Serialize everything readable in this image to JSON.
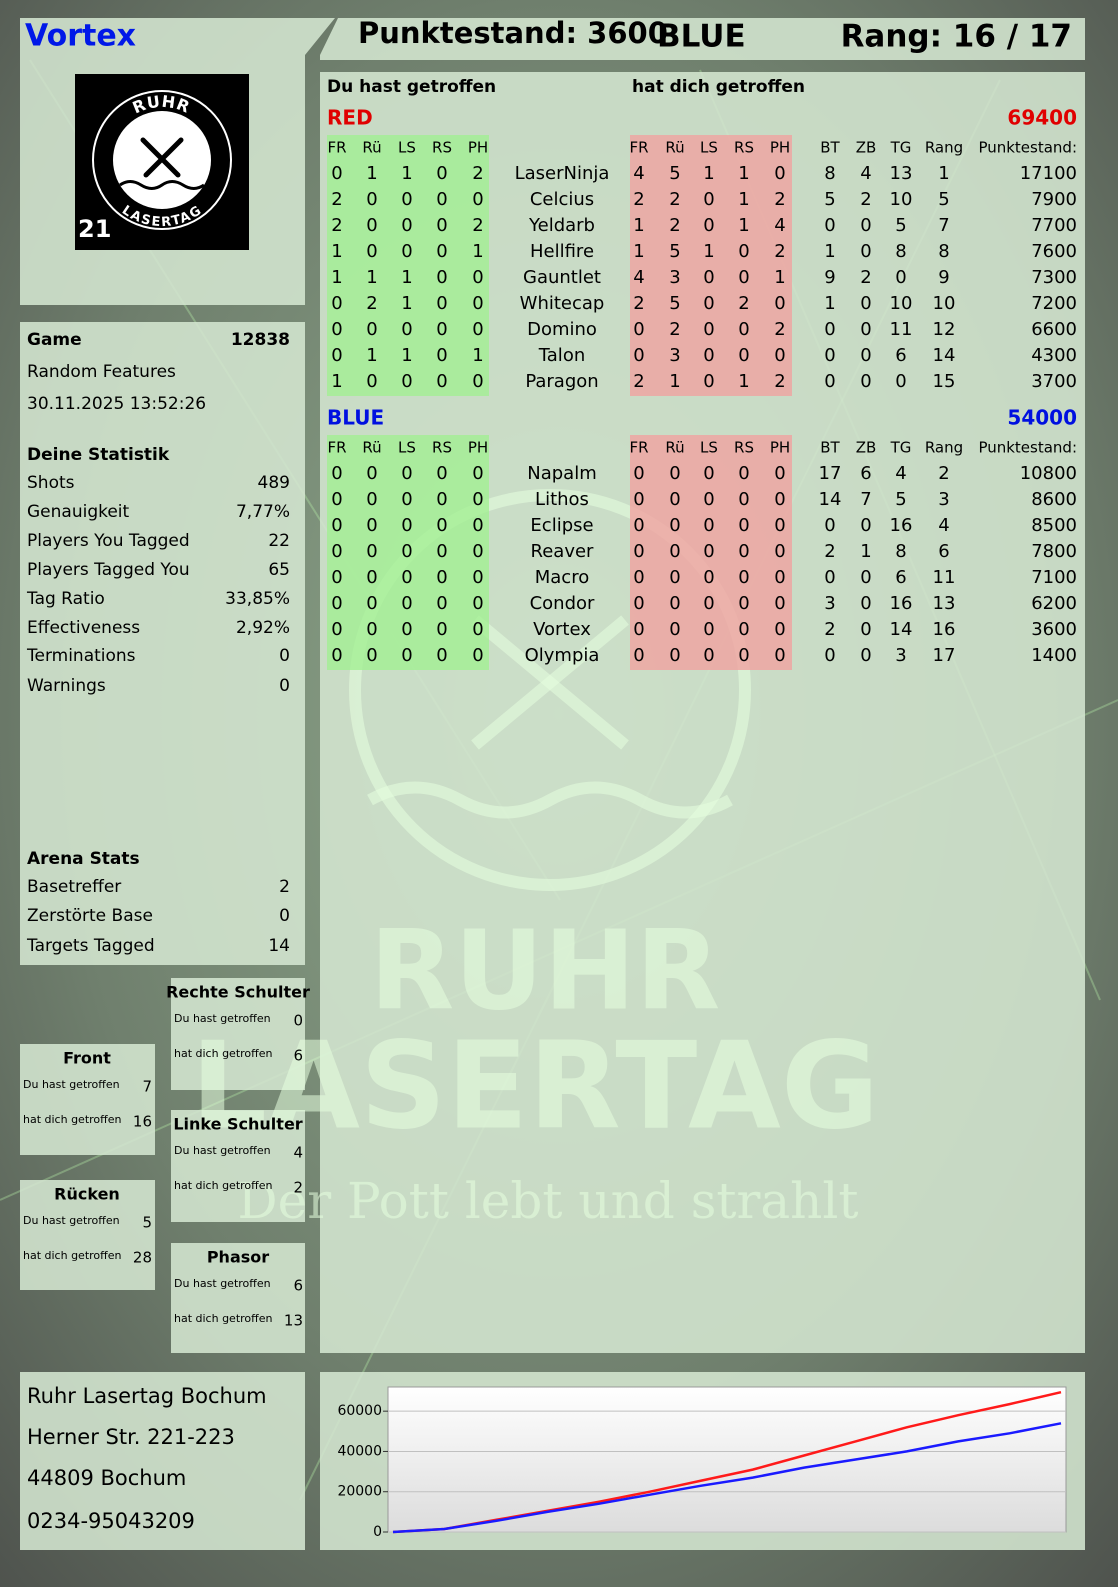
{
  "header": {
    "player": "Vortex",
    "score": "Punktestand: 3600",
    "team": "BLUE",
    "rank": "Rang: 16 / 17"
  },
  "logo": {
    "top": "RUHR",
    "bottom": "LASERTAG",
    "number": "21"
  },
  "game": {
    "label": "Game",
    "id": 12838,
    "mode": "Random Features",
    "date": "30.11.2025 13:52:26"
  },
  "stats": {
    "title": "Deine Statistik",
    "rows": [
      [
        "Shots",
        489
      ],
      [
        "Genauigkeit",
        "7,77%"
      ],
      [
        "Players You Tagged",
        22
      ],
      [
        "Players Tagged You",
        65
      ],
      [
        "Tag Ratio",
        "33,85%"
      ],
      [
        "Effectiveness",
        "2,92%"
      ],
      [
        "Terminations",
        0
      ],
      [
        "Warnings",
        0
      ]
    ]
  },
  "arena": {
    "title": "Arena Stats",
    "rows": [
      [
        "Basetreffer",
        2
      ],
      [
        "Zerstörte Base",
        0
      ],
      [
        "Targets Tagged",
        14
      ]
    ]
  },
  "zones": [
    {
      "title": "Rechte Schulter",
      "rows": [
        [
          "Du hast getroffen",
          0
        ],
        [
          "hat dich getroffen",
          6
        ]
      ]
    },
    {
      "title": "Front",
      "rows": [
        [
          "Du hast getroffen",
          7
        ],
        [
          "hat dich getroffen",
          16
        ]
      ]
    },
    {
      "title": "Linke Schulter",
      "rows": [
        [
          "Du hast getroffen",
          4
        ],
        [
          "hat dich getroffen",
          2
        ]
      ]
    },
    {
      "title": "Rücken",
      "rows": [
        [
          "Du hast getroffen",
          5
        ],
        [
          "hat dich getroffen",
          28
        ]
      ]
    },
    {
      "title": "Phasor",
      "rows": [
        [
          "Du hast getroffen",
          6
        ],
        [
          "hat dich getroffen",
          13
        ]
      ]
    }
  ],
  "address": [
    "Ruhr Lasertag Bochum",
    "Herner Str. 221-223",
    "44809 Bochum",
    "0234-95043209"
  ],
  "watermark": {
    "line1": "RUHR",
    "line2": "LASERTAG",
    "slogan": "Der Pott lebt und strahlt"
  },
  "table": {
    "hit_by_you": "Du hast getroffen",
    "hit_you": "hat dich getroffen",
    "columns_left": [
      "FR",
      "Rü",
      "LS",
      "RS",
      "PH"
    ],
    "columns_right": [
      "FR",
      "Rü",
      "LS",
      "RS",
      "PH"
    ],
    "columns_stats": [
      "BT",
      "ZB",
      "TG",
      "Rang",
      "Punktestand:"
    ],
    "teams": [
      {
        "name": "RED",
        "score": 69400,
        "color": "#e00000",
        "rows": [
          {
            "name": "LaserNinja",
            "you_hit": [
              0,
              1,
              1,
              0,
              2
            ],
            "hit_you": [
              4,
              5,
              1,
              1,
              0
            ],
            "stats": [
              8,
              4,
              13,
              1,
              17100
            ]
          },
          {
            "name": "Celcius",
            "you_hit": [
              2,
              0,
              0,
              0,
              0
            ],
            "hit_you": [
              2,
              2,
              0,
              1,
              2
            ],
            "stats": [
              5,
              2,
              10,
              5,
              7900
            ]
          },
          {
            "name": "Yeldarb",
            "you_hit": [
              2,
              0,
              0,
              0,
              2
            ],
            "hit_you": [
              1,
              2,
              0,
              1,
              4
            ],
            "stats": [
              0,
              0,
              5,
              7,
              7700
            ]
          },
          {
            "name": "Hellfire",
            "you_hit": [
              1,
              0,
              0,
              0,
              1
            ],
            "hit_you": [
              1,
              5,
              1,
              0,
              2
            ],
            "stats": [
              1,
              0,
              8,
              8,
              7600
            ]
          },
          {
            "name": "Gauntlet",
            "you_hit": [
              1,
              1,
              1,
              0,
              0
            ],
            "hit_you": [
              4,
              3,
              0,
              0,
              1
            ],
            "stats": [
              9,
              2,
              0,
              9,
              7300
            ]
          },
          {
            "name": "Whitecap",
            "you_hit": [
              0,
              2,
              1,
              0,
              0
            ],
            "hit_you": [
              2,
              5,
              0,
              2,
              0
            ],
            "stats": [
              1,
              0,
              10,
              10,
              7200
            ]
          },
          {
            "name": "Domino",
            "you_hit": [
              0,
              0,
              0,
              0,
              0
            ],
            "hit_you": [
              0,
              2,
              0,
              0,
              2
            ],
            "stats": [
              0,
              0,
              11,
              12,
              6600
            ]
          },
          {
            "name": "Talon",
            "you_hit": [
              0,
              1,
              1,
              0,
              1
            ],
            "hit_you": [
              0,
              3,
              0,
              0,
              0
            ],
            "stats": [
              0,
              0,
              6,
              14,
              4300
            ]
          },
          {
            "name": "Paragon",
            "you_hit": [
              1,
              0,
              0,
              0,
              0
            ],
            "hit_you": [
              2,
              1,
              0,
              1,
              2
            ],
            "stats": [
              0,
              0,
              0,
              15,
              3700
            ]
          }
        ]
      },
      {
        "name": "BLUE",
        "score": 54000,
        "color": "#0010e0",
        "rows": [
          {
            "name": "Napalm",
            "you_hit": [
              0,
              0,
              0,
              0,
              0
            ],
            "hit_you": [
              0,
              0,
              0,
              0,
              0
            ],
            "stats": [
              17,
              6,
              4,
              2,
              10800
            ]
          },
          {
            "name": "Lithos",
            "you_hit": [
              0,
              0,
              0,
              0,
              0
            ],
            "hit_you": [
              0,
              0,
              0,
              0,
              0
            ],
            "stats": [
              14,
              7,
              5,
              3,
              8600
            ]
          },
          {
            "name": "Eclipse",
            "you_hit": [
              0,
              0,
              0,
              0,
              0
            ],
            "hit_you": [
              0,
              0,
              0,
              0,
              0
            ],
            "stats": [
              0,
              0,
              16,
              4,
              8500
            ]
          },
          {
            "name": "Reaver",
            "you_hit": [
              0,
              0,
              0,
              0,
              0
            ],
            "hit_you": [
              0,
              0,
              0,
              0,
              0
            ],
            "stats": [
              2,
              1,
              8,
              6,
              7800
            ]
          },
          {
            "name": "Macro",
            "you_hit": [
              0,
              0,
              0,
              0,
              0
            ],
            "hit_you": [
              0,
              0,
              0,
              0,
              0
            ],
            "stats": [
              0,
              0,
              6,
              11,
              7100
            ]
          },
          {
            "name": "Condor",
            "you_hit": [
              0,
              0,
              0,
              0,
              0
            ],
            "hit_you": [
              0,
              0,
              0,
              0,
              0
            ],
            "stats": [
              3,
              0,
              16,
              13,
              6200
            ]
          },
          {
            "name": "Vortex",
            "you_hit": [
              0,
              0,
              0,
              0,
              0
            ],
            "hit_you": [
              0,
              0,
              0,
              0,
              0
            ],
            "stats": [
              2,
              0,
              14,
              16,
              3600
            ]
          },
          {
            "name": "Olympia",
            "you_hit": [
              0,
              0,
              0,
              0,
              0
            ],
            "hit_you": [
              0,
              0,
              0,
              0,
              0
            ],
            "stats": [
              0,
              0,
              3,
              17,
              1400
            ]
          }
        ]
      }
    ]
  },
  "chart_data": {
    "type": "line",
    "x": [
      0,
      1,
      2,
      3,
      4,
      5,
      6,
      7,
      8,
      9,
      10,
      11,
      12,
      13
    ],
    "xlim": [
      0,
      13
    ],
    "ylim": [
      0,
      72000
    ],
    "yticks": [
      0,
      20000,
      40000,
      60000
    ],
    "grid": true,
    "series": [
      {
        "name": "RED",
        "color": "#ff1a1a",
        "values": [
          0,
          1500,
          6000,
          10500,
          15000,
          20000,
          25500,
          31000,
          38000,
          45000,
          52000,
          58000,
          63500,
          69400
        ]
      },
      {
        "name": "BLUE",
        "color": "#1a1aff",
        "values": [
          0,
          1500,
          5500,
          10000,
          14000,
          18500,
          23000,
          27000,
          32000,
          36000,
          40000,
          45000,
          49000,
          54000
        ]
      }
    ]
  }
}
